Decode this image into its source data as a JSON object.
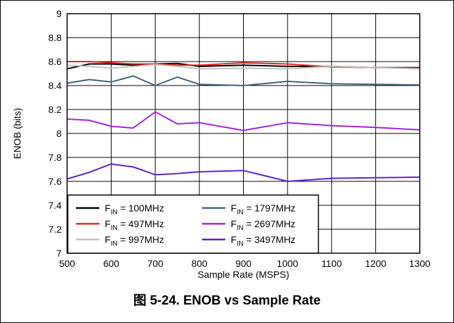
{
  "caption": "图 5-24. ENOB vs Sample Rate",
  "chart_data": {
    "type": "line",
    "xlabel": "Sample Rate (MSPS)",
    "ylabel": "ENOB (bits)",
    "xlim": [
      500,
      1300
    ],
    "ylim": [
      7,
      9
    ],
    "xticks": [
      500,
      600,
      700,
      800,
      900,
      1000,
      1100,
      1200,
      1300
    ],
    "yticks": [
      7,
      7.2,
      7.4,
      7.6,
      7.8,
      8,
      8.2,
      8.4,
      8.6,
      8.8,
      9
    ],
    "ytick_labels": [
      "7",
      "7.2",
      "7.4",
      "7.6",
      "7.8",
      "8",
      "8.2",
      "8.4",
      "8.6",
      "8.8",
      "9"
    ],
    "grid": true,
    "legend_position": "bottom-left",
    "series": [
      {
        "label_main": "F",
        "label_sub": "IN",
        "label_rest": " = 100MHz",
        "color": "#000000",
        "x": [
          500,
          550,
          600,
          650,
          700,
          750,
          800,
          900,
          1000,
          1100,
          1200,
          1300
        ],
        "y": [
          8.54,
          8.58,
          8.58,
          8.57,
          8.58,
          8.585,
          8.56,
          8.57,
          8.56,
          8.56,
          8.55,
          8.55
        ]
      },
      {
        "label_main": "F",
        "label_sub": "IN",
        "label_rest": " = 497MHz",
        "color": "#e8221c",
        "x": [
          500,
          550,
          600,
          650,
          700,
          750,
          800,
          900,
          1000,
          1100,
          1200,
          1300
        ],
        "y": [
          8.6,
          8.6,
          8.59,
          8.58,
          8.58,
          8.57,
          8.57,
          8.59,
          8.58,
          8.555,
          8.55,
          8.545
        ]
      },
      {
        "label_main": "F",
        "label_sub": "IN",
        "label_rest": " = 997MHz",
        "color": "#c0c0c0",
        "x": [
          500,
          550,
          600,
          650,
          700,
          750,
          800,
          900,
          1000,
          1100,
          1200,
          1300
        ],
        "y": [
          8.57,
          8.56,
          8.545,
          8.56,
          8.575,
          8.56,
          8.54,
          8.545,
          8.54,
          8.56,
          8.55,
          8.54
        ]
      },
      {
        "label_main": "F",
        "label_sub": "IN",
        "label_rest": " = 1797MHz",
        "color": "#3a6377",
        "x": [
          500,
          550,
          600,
          650,
          700,
          750,
          800,
          900,
          1000,
          1100,
          1200,
          1300
        ],
        "y": [
          8.42,
          8.45,
          8.43,
          8.48,
          8.4,
          8.47,
          8.41,
          8.4,
          8.435,
          8.415,
          8.41,
          8.405
        ]
      },
      {
        "label_main": "F",
        "label_sub": "IN",
        "label_rest": " = 2697MHz",
        "color": "#a020e0",
        "x": [
          500,
          550,
          600,
          650,
          700,
          750,
          800,
          900,
          1000,
          1100,
          1200,
          1300
        ],
        "y": [
          8.12,
          8.11,
          8.06,
          8.045,
          8.18,
          8.08,
          8.09,
          8.025,
          8.09,
          8.065,
          8.05,
          8.03
        ]
      },
      {
        "label_main": "F",
        "label_sub": "IN",
        "label_rest": " = 3497MHz",
        "color": "#5b1fd8",
        "x": [
          500,
          550,
          600,
          650,
          700,
          750,
          800,
          900,
          1000,
          1100,
          1200,
          1300
        ],
        "y": [
          7.62,
          7.675,
          7.745,
          7.72,
          7.655,
          7.665,
          7.68,
          7.69,
          7.6,
          7.625,
          7.63,
          7.635
        ]
      }
    ]
  }
}
